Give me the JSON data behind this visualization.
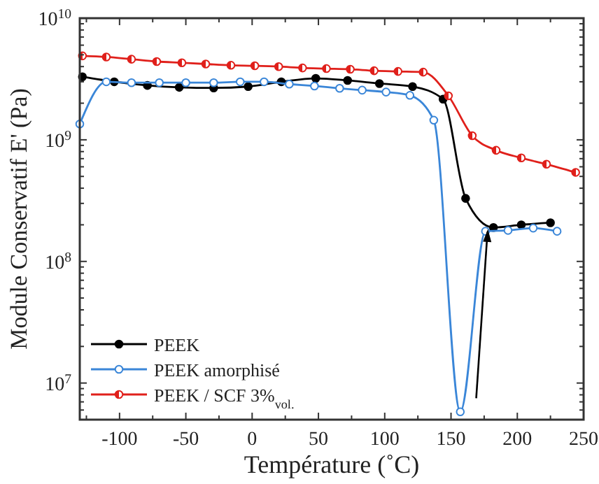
{
  "chart_data": {
    "type": "line",
    "xlabel": "Température (˚C)",
    "ylabel": "Module Conservatif E' (Pa)",
    "log": "y",
    "grid": false,
    "legend": "bottom left",
    "marker": "circle",
    "line_style": "solid",
    "xlim": [
      -130,
      250
    ],
    "ylim": [
      5000000,
      10000000000
    ],
    "xticks": [
      {
        "value": -125,
        "label": null
      },
      -100,
      {
        "value": -75,
        "label": null
      },
      -50,
      {
        "value": -25,
        "label": null
      },
      0,
      {
        "value": 25,
        "label": null
      },
      50,
      {
        "value": 75,
        "label": null
      },
      100,
      {
        "value": 125,
        "label": null
      },
      150,
      {
        "value": 175,
        "label": null
      },
      200,
      {
        "value": 225,
        "label": null
      },
      250
    ],
    "yticks": [
      {
        "value": 6000000,
        "label": null
      },
      {
        "value": 7000000,
        "label": null
      },
      {
        "value": 8000000,
        "label": null
      },
      {
        "value": 9000000,
        "label": null
      },
      {
        "value": 10000000,
        "label": "10$^{7}$"
      },
      {
        "value": 20000000,
        "label": null
      },
      {
        "value": 30000000,
        "label": null
      },
      {
        "value": 40000000,
        "label": null
      },
      {
        "value": 50000000,
        "label": null
      },
      {
        "value": 60000000,
        "label": null
      },
      {
        "value": 70000000,
        "label": null
      },
      {
        "value": 80000000,
        "label": null
      },
      {
        "value": 90000000,
        "label": null
      },
      {
        "value": 100000000,
        "label": "10$^{8}$"
      },
      {
        "value": 200000000,
        "label": null
      },
      {
        "value": 300000000,
        "label": null
      },
      {
        "value": 400000000,
        "label": null
      },
      {
        "value": 500000000,
        "label": null
      },
      {
        "value": 600000000,
        "label": null
      },
      {
        "value": 700000000,
        "label": null
      },
      {
        "value": 800000000,
        "label": null
      },
      {
        "value": 900000000,
        "label": null
      },
      {
        "value": 1000000000,
        "label": "10$^{9}$"
      },
      {
        "value": 2000000000,
        "label": null
      },
      {
        "value": 3000000000,
        "label": null
      },
      {
        "value": 4000000000,
        "label": null
      },
      {
        "value": 5000000000,
        "label": null
      },
      {
        "value": 6000000000,
        "label": null
      },
      {
        "value": 7000000000,
        "label": null
      },
      {
        "value": 8000000000,
        "label": null
      },
      {
        "value": 9000000000,
        "label": null
      },
      {
        "value": 10000000000,
        "label": "10$^{10}$"
      }
    ],
    "series": [
      {
        "name": "PEEK",
        "color": "#000000",
        "x": [
          -128,
          -104,
          -79,
          -55,
          -29,
          -3,
          22,
          48,
          72,
          96,
          121,
          144,
          161,
          182,
          203,
          225
        ],
        "values": [
          3300000000,
          3000000000,
          2800000000,
          2700000000,
          2670000000,
          2740000000,
          3000000000,
          3200000000,
          3080000000,
          2900000000,
          2740000000,
          2160000000,
          330000000,
          190000000,
          200000000,
          208000000
        ]
      },
      {
        "name": "PEEK amorphisé",
        "color": "#3a86d8",
        "x": [
          -130,
          -110,
          -91,
          -70,
          -50,
          -29,
          -9,
          9,
          28,
          47,
          66,
          83,
          101,
          119,
          137,
          157,
          176,
          193,
          212,
          230
        ],
        "values": [
          1350000000,
          3000000000,
          2950000000,
          2950000000,
          2950000000,
          2950000000,
          3000000000,
          3000000000,
          2870000000,
          2770000000,
          2650000000,
          2560000000,
          2470000000,
          2320000000,
          1450000000,
          5800000,
          177000000,
          180000000,
          188000000,
          177000000
        ]
      },
      {
        "name": "PEEK / SCF 3%$_{vol.}$",
        "color": "#e0201b",
        "x": [
          -128,
          -110,
          -91,
          -72,
          -53,
          -35,
          -16,
          2,
          20,
          38,
          56,
          74,
          92,
          110,
          129,
          148,
          166,
          184,
          203,
          222,
          244
        ],
        "values": [
          4900000000,
          4800000000,
          4600000000,
          4400000000,
          4300000000,
          4200000000,
          4100000000,
          4060000000,
          4000000000,
          3900000000,
          3850000000,
          3800000000,
          3700000000,
          3650000000,
          3600000000,
          2300000000,
          1080000000,
          820000000,
          710000000,
          630000000,
          540000000
        ]
      }
    ]
  }
}
